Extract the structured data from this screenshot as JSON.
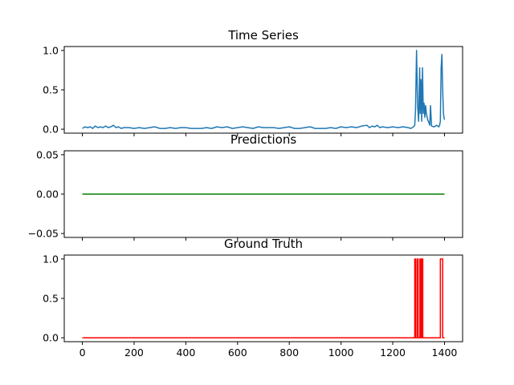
{
  "chart_data": [
    {
      "type": "line",
      "title": "Time Series",
      "xlabel": "",
      "ylabel": "",
      "xlim": [
        -70,
        1470
      ],
      "ylim": [
        -0.05,
        1.05
      ],
      "xticks": [
        0,
        200,
        400,
        600,
        800,
        1000,
        1200,
        1400
      ],
      "show_xtick_labels": false,
      "yticks": [
        0.0,
        0.5,
        1.0
      ],
      "ytick_labels": [
        "0.0",
        "0.5",
        "1.0"
      ],
      "grid": false,
      "color": "#1f77b4",
      "series": [
        {
          "x": [
            0,
            10,
            20,
            30,
            40,
            50,
            60,
            70,
            80,
            90,
            100,
            110,
            120,
            130,
            140,
            150,
            160,
            180,
            200,
            220,
            240,
            260,
            280,
            300,
            320,
            340,
            360,
            380,
            400,
            420,
            440,
            460,
            480,
            500,
            520,
            540,
            560,
            580,
            600,
            620,
            640,
            660,
            680,
            700,
            720,
            740,
            760,
            780,
            800,
            820,
            840,
            860,
            880,
            900,
            920,
            940,
            960,
            980,
            1000,
            1020,
            1040,
            1060,
            1080,
            1100,
            1110,
            1120,
            1130,
            1140,
            1150,
            1160,
            1180,
            1200,
            1220,
            1240,
            1260,
            1270,
            1280,
            1285,
            1288,
            1292,
            1296,
            1300,
            1304,
            1306,
            1309,
            1312,
            1315,
            1318,
            1321,
            1324,
            1327,
            1330,
            1335,
            1340,
            1343,
            1346,
            1350,
            1360,
            1370,
            1378,
            1381,
            1384,
            1387,
            1390,
            1393,
            1396,
            1398,
            1400
          ],
          "y": [
            0.01,
            0.03,
            0.02,
            0.03,
            0.01,
            0.04,
            0.02,
            0.03,
            0.02,
            0.04,
            0.02,
            0.03,
            0.05,
            0.02,
            0.03,
            0.01,
            0.02,
            0.02,
            0.01,
            0.02,
            0.01,
            0.02,
            0.03,
            0.01,
            0.01,
            0.02,
            0.01,
            0.02,
            0.02,
            0.01,
            0.01,
            0.01,
            0.02,
            0.01,
            0.03,
            0.02,
            0.03,
            0.01,
            0.02,
            0.03,
            0.02,
            0.01,
            0.03,
            0.02,
            0.02,
            0.02,
            0.01,
            0.02,
            0.03,
            0.01,
            0.01,
            0.02,
            0.03,
            0.01,
            0.01,
            0.01,
            0.02,
            0.01,
            0.03,
            0.02,
            0.03,
            0.02,
            0.04,
            0.05,
            0.02,
            0.04,
            0.03,
            0.05,
            0.02,
            0.03,
            0.02,
            0.03,
            0.02,
            0.03,
            0.02,
            0.01,
            0.03,
            0.05,
            0.25,
            1.0,
            0.3,
            0.1,
            0.78,
            0.2,
            0.63,
            0.1,
            0.78,
            0.2,
            0.33,
            0.15,
            0.3,
            0.2,
            0.12,
            0.08,
            0.05,
            0.3,
            0.04,
            0.03,
            0.05,
            0.03,
            0.05,
            0.1,
            0.78,
            0.95,
            0.5,
            0.2,
            0.15,
            0.12
          ]
        }
      ]
    },
    {
      "type": "line",
      "title": "Predictions",
      "xlabel": "",
      "ylabel": "",
      "xlim": [
        -70,
        1470
      ],
      "ylim": [
        -0.055,
        0.055
      ],
      "xticks": [
        0,
        200,
        400,
        600,
        800,
        1000,
        1200,
        1400
      ],
      "show_xtick_labels": false,
      "yticks": [
        -0.05,
        0.0,
        0.05
      ],
      "ytick_labels": [
        "−0.05",
        "0.00",
        "0.05"
      ],
      "grid": false,
      "color": "#008000",
      "series": [
        {
          "x": [
            0,
            1400
          ],
          "y": [
            0.0,
            0.0
          ]
        }
      ]
    },
    {
      "type": "line",
      "title": "Ground Truth",
      "xlabel": "",
      "ylabel": "",
      "xlim": [
        -70,
        1470
      ],
      "ylim": [
        -0.05,
        1.05
      ],
      "xticks": [
        0,
        200,
        400,
        600,
        800,
        1000,
        1200,
        1400
      ],
      "xtick_labels": [
        "0",
        "200",
        "400",
        "600",
        "800",
        "1000",
        "1200",
        "1400"
      ],
      "show_xtick_labels": true,
      "yticks": [
        0.0,
        0.5,
        1.0
      ],
      "ytick_labels": [
        "0.0",
        "0.5",
        "1.0"
      ],
      "grid": false,
      "color": "#ff0000",
      "series": [
        {
          "x": [
            0,
            1285,
            1285,
            1288,
            1288,
            1294,
            1294,
            1298,
            1298,
            1305,
            1305,
            1308,
            1308,
            1312,
            1312,
            1316,
            1316,
            1320,
            1320,
            1384,
            1384,
            1393,
            1393,
            1400
          ],
          "y": [
            0,
            0,
            1,
            1,
            0,
            0,
            1,
            1,
            0,
            0,
            1,
            1,
            0,
            0,
            1,
            1,
            0,
            0,
            0,
            0,
            1,
            1,
            0,
            0
          ]
        }
      ]
    }
  ]
}
